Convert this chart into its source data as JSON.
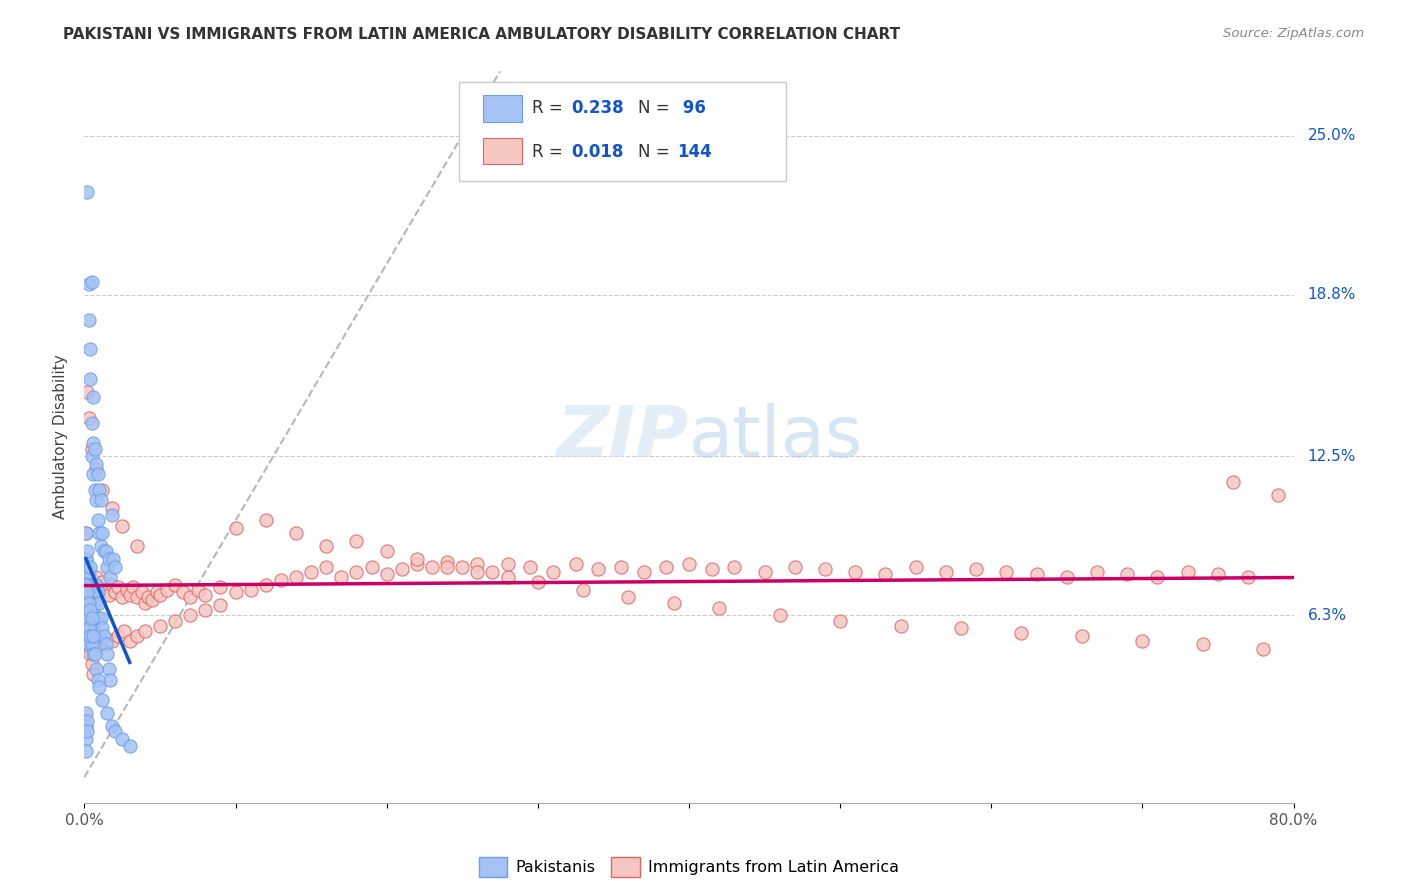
{
  "title": "PAKISTANI VS IMMIGRANTS FROM LATIN AMERICA AMBULATORY DISABILITY CORRELATION CHART",
  "source": "Source: ZipAtlas.com",
  "ylabel": "Ambulatory Disability",
  "ytick_labels": [
    "6.3%",
    "12.5%",
    "18.8%",
    "25.0%"
  ],
  "ytick_values": [
    0.063,
    0.125,
    0.188,
    0.25
  ],
  "xlim": [
    0.0,
    0.8
  ],
  "ylim": [
    -0.01,
    0.275
  ],
  "blue_color": "#a4c2f4",
  "blue_edge_color": "#6d9eeb",
  "pink_color": "#f4c7c3",
  "pink_edge_color": "#e06666",
  "blue_line_color": "#1155cc",
  "pink_line_color": "#cc0066",
  "ref_line_color": "#b7b7b7",
  "legend_label_blue": "Pakistanis",
  "legend_label_pink": "Immigrants from Latin America",
  "background_color": "#ffffff",
  "grid_color": "#cccccc",
  "watermark_color": "#ddeeff",
  "blue_scatter_x": [
    0.002,
    0.003,
    0.003,
    0.004,
    0.004,
    0.005,
    0.005,
    0.005,
    0.006,
    0.006,
    0.006,
    0.007,
    0.007,
    0.008,
    0.008,
    0.009,
    0.009,
    0.01,
    0.01,
    0.011,
    0.011,
    0.012,
    0.013,
    0.014,
    0.015,
    0.016,
    0.017,
    0.018,
    0.019,
    0.02,
    0.001,
    0.001,
    0.001,
    0.001,
    0.002,
    0.002,
    0.002,
    0.003,
    0.003,
    0.004,
    0.004,
    0.005,
    0.005,
    0.006,
    0.006,
    0.007,
    0.007,
    0.008,
    0.008,
    0.009,
    0.009,
    0.01,
    0.01,
    0.011,
    0.012,
    0.013,
    0.014,
    0.015,
    0.016,
    0.017,
    0.001,
    0.001,
    0.001,
    0.002,
    0.002,
    0.003,
    0.003,
    0.004,
    0.005,
    0.006,
    0.001,
    0.001,
    0.002,
    0.002,
    0.003,
    0.003,
    0.004,
    0.004,
    0.005,
    0.006,
    0.007,
    0.008,
    0.009,
    0.01,
    0.012,
    0.015,
    0.018,
    0.02,
    0.025,
    0.03,
    0.001,
    0.001,
    0.001,
    0.001,
    0.002,
    0.002
  ],
  "blue_scatter_y": [
    0.228,
    0.192,
    0.178,
    0.167,
    0.155,
    0.193,
    0.138,
    0.125,
    0.148,
    0.13,
    0.118,
    0.128,
    0.112,
    0.122,
    0.108,
    0.118,
    0.1,
    0.112,
    0.095,
    0.108,
    0.09,
    0.095,
    0.088,
    0.088,
    0.082,
    0.085,
    0.078,
    0.102,
    0.085,
    0.082,
    0.095,
    0.085,
    0.078,
    0.072,
    0.088,
    0.082,
    0.075,
    0.08,
    0.072,
    0.082,
    0.075,
    0.075,
    0.068,
    0.072,
    0.065,
    0.075,
    0.068,
    0.075,
    0.062,
    0.072,
    0.062,
    0.068,
    0.055,
    0.062,
    0.058,
    0.055,
    0.052,
    0.048,
    0.042,
    0.038,
    0.068,
    0.06,
    0.052,
    0.065,
    0.058,
    0.06,
    0.052,
    0.058,
    0.052,
    0.048,
    0.075,
    0.065,
    0.072,
    0.062,
    0.068,
    0.058,
    0.065,
    0.055,
    0.062,
    0.055,
    0.048,
    0.042,
    0.038,
    0.035,
    0.03,
    0.025,
    0.02,
    0.018,
    0.015,
    0.012,
    0.025,
    0.02,
    0.015,
    0.01,
    0.022,
    0.018
  ],
  "pink_scatter_x": [
    0.001,
    0.002,
    0.003,
    0.004,
    0.005,
    0.006,
    0.007,
    0.008,
    0.009,
    0.01,
    0.012,
    0.014,
    0.016,
    0.018,
    0.02,
    0.022,
    0.025,
    0.028,
    0.03,
    0.032,
    0.035,
    0.038,
    0.04,
    0.042,
    0.045,
    0.048,
    0.05,
    0.055,
    0.06,
    0.065,
    0.07,
    0.075,
    0.08,
    0.09,
    0.1,
    0.11,
    0.12,
    0.13,
    0.14,
    0.15,
    0.16,
    0.17,
    0.18,
    0.19,
    0.2,
    0.21,
    0.22,
    0.23,
    0.24,
    0.25,
    0.26,
    0.27,
    0.28,
    0.295,
    0.31,
    0.325,
    0.34,
    0.355,
    0.37,
    0.385,
    0.4,
    0.415,
    0.43,
    0.45,
    0.47,
    0.49,
    0.51,
    0.53,
    0.55,
    0.57,
    0.59,
    0.61,
    0.63,
    0.65,
    0.67,
    0.69,
    0.71,
    0.73,
    0.75,
    0.77,
    0.002,
    0.003,
    0.004,
    0.005,
    0.006,
    0.007,
    0.008,
    0.01,
    0.012,
    0.015,
    0.018,
    0.022,
    0.026,
    0.03,
    0.035,
    0.04,
    0.05,
    0.06,
    0.07,
    0.08,
    0.09,
    0.1,
    0.12,
    0.14,
    0.16,
    0.18,
    0.2,
    0.22,
    0.24,
    0.26,
    0.28,
    0.3,
    0.33,
    0.36,
    0.39,
    0.42,
    0.46,
    0.5,
    0.54,
    0.58,
    0.62,
    0.66,
    0.7,
    0.74,
    0.78,
    0.002,
    0.003,
    0.005,
    0.008,
    0.012,
    0.018,
    0.025,
    0.035,
    0.76,
    0.79,
    0.001,
    0.001,
    0.002,
    0.002,
    0.003,
    0.003,
    0.004,
    0.005,
    0.006
  ],
  "pink_scatter_y": [
    0.078,
    0.075,
    0.073,
    0.076,
    0.072,
    0.074,
    0.076,
    0.078,
    0.072,
    0.074,
    0.076,
    0.073,
    0.071,
    0.075,
    0.072,
    0.074,
    0.07,
    0.073,
    0.071,
    0.074,
    0.07,
    0.072,
    0.068,
    0.07,
    0.069,
    0.072,
    0.071,
    0.073,
    0.075,
    0.072,
    0.07,
    0.073,
    0.071,
    0.074,
    0.072,
    0.073,
    0.075,
    0.077,
    0.078,
    0.08,
    0.082,
    0.078,
    0.08,
    0.082,
    0.079,
    0.081,
    0.083,
    0.082,
    0.084,
    0.082,
    0.083,
    0.08,
    0.083,
    0.082,
    0.08,
    0.083,
    0.081,
    0.082,
    0.08,
    0.082,
    0.083,
    0.081,
    0.082,
    0.08,
    0.082,
    0.081,
    0.08,
    0.079,
    0.082,
    0.08,
    0.081,
    0.08,
    0.079,
    0.078,
    0.08,
    0.079,
    0.078,
    0.08,
    0.079,
    0.078,
    0.068,
    0.065,
    0.062,
    0.06,
    0.058,
    0.056,
    0.055,
    0.053,
    0.052,
    0.054,
    0.053,
    0.055,
    0.057,
    0.053,
    0.055,
    0.057,
    0.059,
    0.061,
    0.063,
    0.065,
    0.067,
    0.097,
    0.1,
    0.095,
    0.09,
    0.092,
    0.088,
    0.085,
    0.082,
    0.08,
    0.078,
    0.076,
    0.073,
    0.07,
    0.068,
    0.066,
    0.063,
    0.061,
    0.059,
    0.058,
    0.056,
    0.055,
    0.053,
    0.052,
    0.05,
    0.15,
    0.14,
    0.128,
    0.12,
    0.112,
    0.105,
    0.098,
    0.09,
    0.115,
    0.11,
    0.095,
    0.085,
    0.075,
    0.065,
    0.058,
    0.052,
    0.048,
    0.044,
    0.04
  ]
}
